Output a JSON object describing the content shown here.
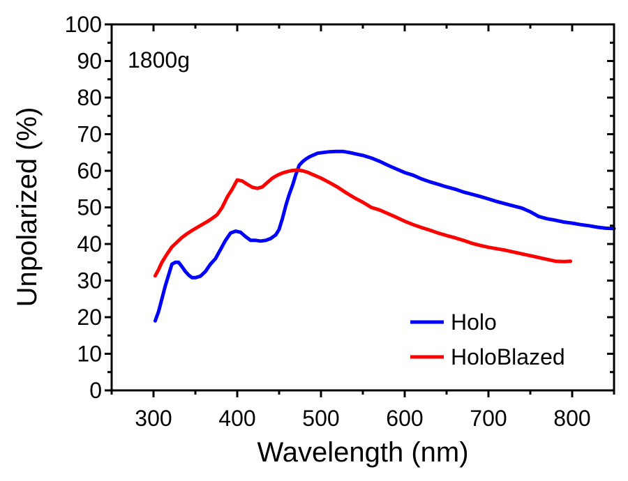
{
  "chart_data": {
    "type": "line",
    "title": "",
    "xlabel": "Wavelength (nm)",
    "ylabel": "Unpolarized (%)",
    "xlim": [
      250,
      850
    ],
    "ylim": [
      0,
      100
    ],
    "x_ticks": [
      300,
      400,
      500,
      600,
      700,
      800
    ],
    "y_ticks": [
      0,
      10,
      20,
      30,
      40,
      50,
      60,
      70,
      80,
      90,
      100
    ],
    "x_tick_labels": [
      "300",
      "400",
      "500",
      "600",
      "700",
      "800"
    ],
    "y_tick_labels": [
      "0",
      "10",
      "20",
      "30",
      "40",
      "50",
      "60",
      "70",
      "80",
      "90",
      "100"
    ],
    "grid": false,
    "legend_position": "bottom-right",
    "annotation": "1800g",
    "series": [
      {
        "name": "Holo",
        "color": "#0000ff",
        "x": [
          302,
          306,
          310,
          314,
          318,
          322,
          326,
          330,
          334,
          338,
          342,
          346,
          350,
          356,
          362,
          368,
          374,
          380,
          386,
          392,
          398,
          404,
          410,
          416,
          422,
          428,
          434,
          440,
          446,
          450,
          454,
          458,
          462,
          466,
          470,
          474,
          478,
          482,
          486,
          490,
          496,
          502,
          510,
          518,
          526,
          534,
          542,
          550,
          560,
          570,
          580,
          590,
          600,
          610,
          620,
          630,
          640,
          650,
          660,
          670,
          680,
          690,
          700,
          710,
          720,
          730,
          740,
          750,
          760,
          770,
          780,
          790,
          800,
          810,
          820,
          830,
          840,
          850
        ],
        "y": [
          19,
          21.5,
          25,
          28.5,
          31.5,
          34.5,
          35,
          35,
          33.8,
          32.5,
          31.5,
          30.8,
          30.8,
          31.2,
          32.5,
          34.5,
          36,
          38.5,
          41,
          43,
          43.5,
          43.2,
          42,
          41,
          41,
          40.8,
          41,
          41.5,
          42.5,
          44,
          47,
          50.5,
          53.5,
          56,
          59,
          61.5,
          62.5,
          63.2,
          63.8,
          64.2,
          64.8,
          65,
          65.2,
          65.3,
          65.3,
          65,
          64.6,
          64.2,
          63.5,
          62.6,
          61.5,
          60.5,
          59.5,
          58.8,
          57.8,
          57,
          56.3,
          55.6,
          55,
          54.2,
          53.6,
          53,
          52.3,
          51.6,
          51,
          50.4,
          49.8,
          48.8,
          47.5,
          46.9,
          46.5,
          46,
          45.7,
          45.3,
          45,
          44.6,
          44.3,
          44.2
        ]
      },
      {
        "name": "HoloBlazed",
        "color": "#ff0000",
        "x": [
          302,
          306,
          310,
          316,
          322,
          328,
          334,
          340,
          346,
          352,
          358,
          364,
          370,
          376,
          382,
          388,
          394,
          400,
          406,
          412,
          418,
          424,
          430,
          436,
          442,
          448,
          454,
          460,
          466,
          472,
          478,
          484,
          490,
          500,
          510,
          520,
          530,
          540,
          550,
          560,
          570,
          580,
          590,
          600,
          610,
          620,
          630,
          640,
          650,
          660,
          670,
          680,
          690,
          700,
          710,
          720,
          730,
          740,
          750,
          760,
          770,
          780,
          790,
          798
        ],
        "y": [
          31.3,
          33,
          35,
          37.2,
          39.2,
          40.5,
          41.8,
          42.8,
          43.7,
          44.5,
          45.3,
          46.1,
          47,
          48,
          50,
          52.8,
          55,
          57.5,
          57.2,
          56.3,
          55.5,
          55.2,
          55.6,
          56.8,
          58,
          58.8,
          59.4,
          59.8,
          60.1,
          60.2,
          60,
          59.6,
          59,
          58,
          56.8,
          55.5,
          54,
          52.6,
          51.4,
          50,
          49.3,
          48.3,
          47.3,
          46.2,
          45.3,
          44.5,
          43.8,
          43,
          42.3,
          41.7,
          41,
          40.2,
          39.6,
          39.1,
          38.7,
          38.3,
          37.8,
          37.3,
          36.8,
          36.3,
          35.8,
          35.3,
          35.2,
          35.3
        ]
      }
    ]
  }
}
